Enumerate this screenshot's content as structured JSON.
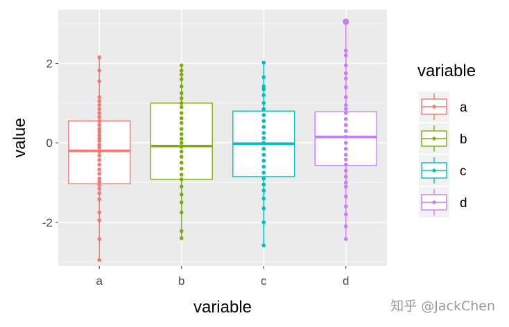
{
  "chart_data": {
    "type": "boxplot",
    "xlabel": "variable",
    "ylabel": "value",
    "categories": [
      "a",
      "b",
      "c",
      "d"
    ],
    "ylim": [
      -3.1,
      3.35
    ],
    "yticks": [
      -2,
      0,
      2
    ],
    "ytick_labels": [
      "-2",
      "0",
      "2"
    ],
    "grid": true,
    "legend": {
      "title": "variable",
      "placement": "right",
      "entries": [
        "a",
        "b",
        "c",
        "d"
      ]
    },
    "colors": {
      "a": "#F8766D",
      "b": "#7CAE00",
      "c": "#00BFC4",
      "d": "#C77CFF"
    },
    "boxes": [
      {
        "name": "a",
        "q1": -1.03,
        "median": -0.2,
        "q3": 0.55,
        "whisker_low": -2.95,
        "whisker_high": 2.15
      },
      {
        "name": "b",
        "q1": -0.92,
        "median": -0.08,
        "q3": 1.0,
        "whisker_low": -2.4,
        "whisker_high": 1.95
      },
      {
        "name": "c",
        "q1": -0.85,
        "median": -0.02,
        "q3": 0.8,
        "whisker_low": -2.58,
        "whisker_high": 2.02
      },
      {
        "name": "d",
        "q1": -0.57,
        "median": 0.15,
        "q3": 0.78,
        "whisker_low": -2.42,
        "whisker_high": 3.05
      }
    ],
    "points": {
      "a": [
        -2.95,
        -2.42,
        -1.95,
        -1.75,
        -1.42,
        -1.27,
        -1.15,
        -1.05,
        -0.98,
        -0.9,
        -0.78,
        -0.67,
        -0.55,
        -0.43,
        -0.32,
        -0.22,
        -0.12,
        -0.05,
        0.05,
        0.12,
        0.2,
        0.28,
        0.35,
        0.45,
        0.55,
        0.65,
        0.75,
        0.85,
        0.95,
        1.05,
        1.15,
        1.55,
        1.82,
        2.15
      ],
      "b": [
        -2.4,
        -2.22,
        -1.75,
        -1.5,
        -1.3,
        -1.1,
        -0.92,
        -0.8,
        -0.65,
        -0.5,
        -0.35,
        -0.22,
        -0.1,
        0.0,
        0.1,
        0.22,
        0.35,
        0.5,
        0.62,
        0.75,
        0.9,
        1.0,
        1.12,
        1.25,
        1.42,
        1.6,
        1.72,
        1.82,
        1.95
      ],
      "c": [
        -2.58,
        -2.0,
        -1.65,
        -1.4,
        -1.2,
        -1.05,
        -0.9,
        -0.75,
        -0.6,
        -0.45,
        -0.3,
        -0.15,
        0.0,
        0.12,
        0.25,
        0.4,
        0.55,
        0.7,
        0.85,
        1.0,
        1.2,
        1.35,
        1.42,
        1.65,
        2.02
      ],
      "d": [
        -2.42,
        -2.1,
        -1.8,
        -1.6,
        -1.35,
        -1.1,
        -1.0,
        -0.85,
        -0.7,
        -0.55,
        -0.42,
        -0.3,
        -0.15,
        0.0,
        0.15,
        0.3,
        0.45,
        0.6,
        0.75,
        0.85,
        0.95,
        1.15,
        1.4,
        1.62,
        1.75,
        1.95,
        2.2,
        2.32,
        3.05
      ]
    }
  },
  "watermark": "知乎 @JackChen"
}
